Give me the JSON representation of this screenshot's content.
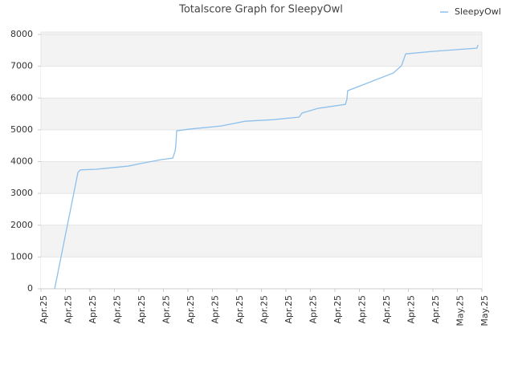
{
  "chart_data": {
    "type": "line",
    "title": "Totalscore Graph for SleepyOwl",
    "series": [
      {
        "name": "SleepyOwl",
        "color": "#8ec0ec",
        "x": [
          0.56,
          1.51,
          1.61,
          2.26,
          3.57,
          4.07,
          4.89,
          5.38,
          5.48,
          5.51,
          5.54,
          6.03,
          7.34,
          8.33,
          9.48,
          10.54,
          10.66,
          11.34,
          12.43,
          12.49,
          12.52,
          14.39,
          14.72,
          14.89,
          16.03,
          17.8,
          17.84
        ],
        "values": [
          0,
          3660,
          3740,
          3760,
          3860,
          3940,
          4060,
          4110,
          4340,
          4540,
          4970,
          5020,
          5120,
          5270,
          5320,
          5400,
          5530,
          5680,
          5800,
          5960,
          6230,
          6790,
          7020,
          7390,
          7470,
          7570,
          7670
        ]
      }
    ],
    "xlim": [
      0,
      18
    ],
    "xticks": [
      {
        "value": 0,
        "label": "Apr.25"
      },
      {
        "value": 1,
        "label": "Apr.25"
      },
      {
        "value": 2,
        "label": "Apr.25"
      },
      {
        "value": 3,
        "label": "Apr.25"
      },
      {
        "value": 4,
        "label": "Apr.25"
      },
      {
        "value": 5,
        "label": "Apr.25"
      },
      {
        "value": 6,
        "label": "Apr.25"
      },
      {
        "value": 7,
        "label": "Apr.25"
      },
      {
        "value": 8,
        "label": "Apr.25"
      },
      {
        "value": 9,
        "label": "Apr.25"
      },
      {
        "value": 10,
        "label": "Apr.25"
      },
      {
        "value": 11,
        "label": "Apr.25"
      },
      {
        "value": 12,
        "label": "Apr.25"
      },
      {
        "value": 13,
        "label": "Apr.25"
      },
      {
        "value": 14,
        "label": "Apr.25"
      },
      {
        "value": 15,
        "label": "Apr.25"
      },
      {
        "value": 16,
        "label": "Apr.25"
      },
      {
        "value": 17,
        "label": "May.25"
      },
      {
        "value": 18,
        "label": "May.25"
      }
    ],
    "ylim": [
      0,
      8000
    ],
    "yticks": [
      0,
      1000,
      2000,
      3000,
      4000,
      5000,
      6000,
      7000,
      8000
    ],
    "grid": true,
    "legend": "top-right"
  }
}
